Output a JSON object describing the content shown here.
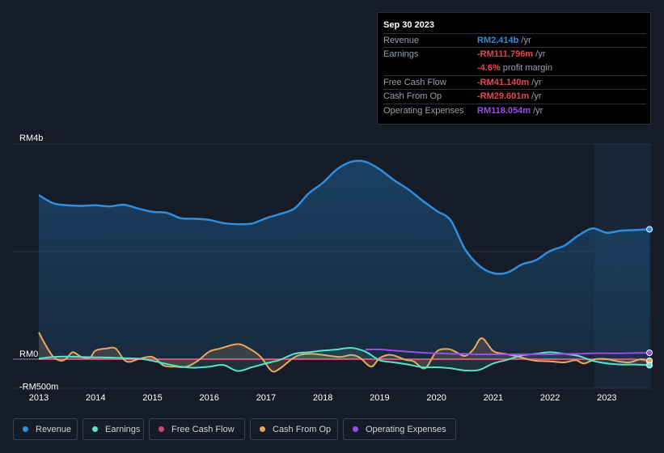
{
  "colors": {
    "background": "#151b27",
    "revenue": "#2e8fe0",
    "earnings": "#5de0c9",
    "free_cash_flow": "#d0457b",
    "cash_from_op": "#e8a860",
    "operating_expenses": "#9a4de8",
    "negative": "#e64848"
  },
  "tooltip": {
    "date": "Sep 30 2023",
    "rows": [
      {
        "label": "Revenue",
        "value": "RM2.414b",
        "unit": " /yr",
        "color": "#2e8fe0"
      },
      {
        "label": "Earnings",
        "value": "-RM111.796m",
        "unit": " /yr",
        "color": "#e64848"
      },
      {
        "label": "",
        "value": "-4.6%",
        "unit": " profit margin",
        "color": "#e64848"
      },
      {
        "label": "Free Cash Flow",
        "value": "-RM41.140m",
        "unit": " /yr",
        "color": "#e64848"
      },
      {
        "label": "Cash From Op",
        "value": "-RM29.601m",
        "unit": " /yr",
        "color": "#e64848"
      },
      {
        "label": "Operating Expenses",
        "value": "RM118.054m",
        "unit": " /yr",
        "color": "#9a4de8"
      }
    ]
  },
  "legend": [
    {
      "label": "Revenue",
      "color": "#2e8fe0",
      "key": "revenue"
    },
    {
      "label": "Earnings",
      "color": "#5de0c9",
      "key": "earnings"
    },
    {
      "label": "Free Cash Flow",
      "color": "#d0457b",
      "key": "free-cash-flow"
    },
    {
      "label": "Cash From Op",
      "color": "#e8a860",
      "key": "cash-from-op"
    },
    {
      "label": "Operating Expenses",
      "color": "#9a4de8",
      "key": "operating-expenses"
    }
  ],
  "chart_data": {
    "type": "area",
    "title": "",
    "xlabel": "",
    "ylabel": "",
    "x_range": [
      2013.0,
      2023.75
    ],
    "ylim": [
      -500,
      4000
    ],
    "y_tick_labels": [
      {
        "value": 4000,
        "label": "RM4b"
      },
      {
        "value": 0,
        "label": "RM0"
      },
      {
        "value": -500,
        "label": "-RM500m"
      }
    ],
    "x_tick_labels": [
      "2013",
      "2014",
      "2015",
      "2016",
      "2017",
      "2018",
      "2019",
      "2020",
      "2021",
      "2022",
      "2023"
    ],
    "x_tick_values": [
      2013,
      2014,
      2015,
      2016,
      2017,
      2018,
      2019,
      2020,
      2021,
      2022,
      2023
    ],
    "series": [
      {
        "name": "Revenue",
        "key": "revenue",
        "x": [
          2013.0,
          2013.25,
          2013.5,
          2013.75,
          2014.0,
          2014.25,
          2014.5,
          2014.75,
          2015.0,
          2015.25,
          2015.5,
          2015.75,
          2016.0,
          2016.25,
          2016.5,
          2016.75,
          2017.0,
          2017.25,
          2017.5,
          2017.75,
          2018.0,
          2018.25,
          2018.5,
          2018.75,
          2019.0,
          2019.25,
          2019.5,
          2019.75,
          2020.0,
          2020.25,
          2020.5,
          2020.75,
          2021.0,
          2021.25,
          2021.5,
          2021.75,
          2022.0,
          2022.25,
          2022.5,
          2022.75,
          2023.0,
          2023.25,
          2023.5,
          2023.75
        ],
        "values": [
          3050,
          2900,
          2860,
          2850,
          2860,
          2840,
          2870,
          2800,
          2740,
          2720,
          2620,
          2610,
          2590,
          2530,
          2510,
          2520,
          2620,
          2700,
          2800,
          3080,
          3280,
          3530,
          3670,
          3670,
          3530,
          3330,
          3160,
          2950,
          2760,
          2580,
          2050,
          1740,
          1600,
          1610,
          1760,
          1840,
          2010,
          2110,
          2300,
          2430,
          2350,
          2390,
          2400,
          2414
        ]
      },
      {
        "name": "Earnings",
        "key": "earnings",
        "x": [
          2013.0,
          2013.25,
          2013.5,
          2013.75,
          2014.0,
          2014.25,
          2014.5,
          2014.75,
          2015.0,
          2015.25,
          2015.5,
          2015.75,
          2016.0,
          2016.25,
          2016.5,
          2016.75,
          2017.0,
          2017.25,
          2017.5,
          2017.75,
          2018.0,
          2018.25,
          2018.5,
          2018.75,
          2019.0,
          2019.25,
          2019.5,
          2019.75,
          2020.0,
          2020.25,
          2020.5,
          2020.75,
          2021.0,
          2021.25,
          2021.5,
          2021.75,
          2022.0,
          2022.25,
          2022.5,
          2022.75,
          2023.0,
          2023.25,
          2023.5,
          2023.75
        ],
        "values": [
          10,
          40,
          50,
          40,
          35,
          30,
          20,
          10,
          -30,
          -90,
          -140,
          -160,
          -140,
          -110,
          -220,
          -150,
          -80,
          -10,
          100,
          130,
          160,
          180,
          210,
          140,
          -20,
          -60,
          -100,
          -150,
          -150,
          -170,
          -210,
          -200,
          -80,
          -10,
          70,
          100,
          130,
          100,
          60,
          -30,
          -80,
          -100,
          -100,
          -112
        ]
      },
      {
        "name": "Free Cash Flow",
        "key": "free-cash-flow",
        "x": [
          2013.0,
          2013.25,
          2013.5,
          2013.75,
          2014.0,
          2014.25,
          2014.5,
          2014.75,
          2015.0,
          2015.25,
          2015.5,
          2015.75,
          2016.0,
          2016.25,
          2016.5,
          2016.75,
          2017.0,
          2017.25,
          2017.5,
          2017.75,
          2018.0,
          2018.25,
          2018.5,
          2018.75,
          2019.0,
          2019.25,
          2019.5,
          2019.75,
          2020.0,
          2020.25,
          2020.5,
          2020.75,
          2021.0,
          2021.25,
          2021.5,
          2021.75,
          2022.0,
          2022.25,
          2022.5,
          2022.75,
          2023.0,
          2023.25,
          2023.5,
          2023.75
        ],
        "values": [
          0,
          0,
          0,
          0,
          0,
          0,
          0,
          0,
          0,
          0,
          0,
          0,
          0,
          0,
          0,
          0,
          0,
          0,
          0,
          0,
          0,
          0,
          0,
          0,
          0,
          0,
          0,
          0,
          0,
          0,
          0,
          0,
          0,
          0,
          0,
          0,
          0,
          0,
          0,
          0,
          0,
          0,
          0,
          -41
        ]
      },
      {
        "name": "Cash From Op",
        "key": "cash-from-op",
        "x": [
          2013.0,
          2013.1,
          2013.25,
          2013.4,
          2013.5,
          2013.6,
          2013.75,
          2013.9,
          2014.0,
          2014.2,
          2014.35,
          2014.5,
          2014.6,
          2014.75,
          2015.0,
          2015.2,
          2015.4,
          2015.6,
          2015.8,
          2016.0,
          2016.2,
          2016.5,
          2016.7,
          2016.9,
          2017.1,
          2017.25,
          2017.45,
          2017.6,
          2017.8,
          2018.0,
          2018.3,
          2018.5,
          2018.65,
          2018.85,
          2019.0,
          2019.2,
          2019.45,
          2019.6,
          2019.8,
          2020.0,
          2020.2,
          2020.35,
          2020.5,
          2020.65,
          2020.8,
          2021.0,
          2021.2,
          2021.4,
          2021.6,
          2021.75,
          2022.0,
          2022.25,
          2022.45,
          2022.6,
          2022.8,
          2023.0,
          2023.2,
          2023.4,
          2023.6,
          2023.75
        ],
        "values": [
          500,
          300,
          50,
          -30,
          30,
          130,
          40,
          30,
          160,
          200,
          200,
          -10,
          -50,
          0,
          40,
          -120,
          -140,
          -140,
          -30,
          140,
          200,
          280,
          200,
          50,
          -220,
          -170,
          0,
          80,
          100,
          80,
          40,
          80,
          30,
          -140,
          20,
          80,
          -10,
          -40,
          -170,
          140,
          190,
          130,
          60,
          180,
          390,
          150,
          100,
          60,
          0,
          -30,
          -40,
          -60,
          -20,
          -80,
          0,
          0,
          -40,
          -60,
          0,
          -30
        ]
      },
      {
        "name": "Operating Expenses",
        "key": "operating-expenses",
        "x": [
          2018.75,
          2019.0,
          2019.25,
          2019.5,
          2019.75,
          2020.0,
          2020.25,
          2020.5,
          2020.75,
          2021.0,
          2021.25,
          2021.5,
          2021.75,
          2022.0,
          2022.25,
          2022.5,
          2022.75,
          2023.0,
          2023.25,
          2023.5,
          2023.75
        ],
        "values": [
          180,
          180,
          160,
          140,
          120,
          110,
          100,
          100,
          90,
          90,
          90,
          90,
          90,
          90,
          100,
          100,
          110,
          110,
          110,
          115,
          118
        ]
      }
    ]
  }
}
